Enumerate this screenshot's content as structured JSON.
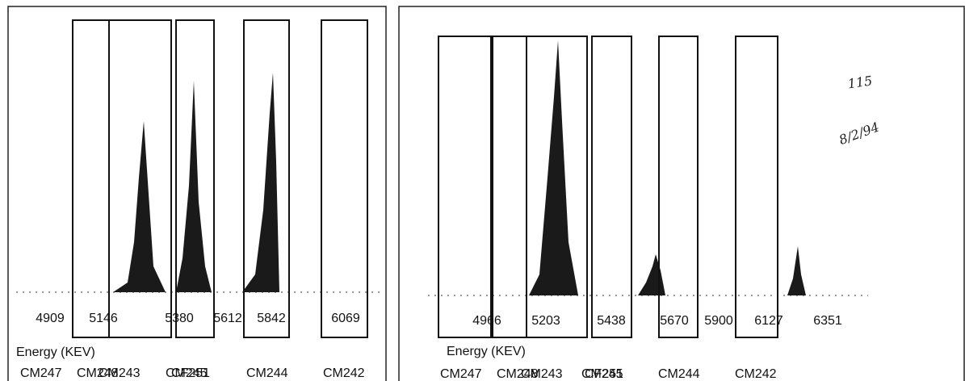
{
  "panels": [
    {
      "energy_labels": [
        "4909",
        "5146",
        "5380",
        "5612",
        "5842",
        "6069"
      ],
      "axis_label": "Energy (KEV)",
      "nuclides": [
        "CM247",
        "CM248",
        "CM243",
        "CM245",
        "CF251",
        "CM244",
        "CM242"
      ]
    },
    {
      "energy_labels": [
        "4966",
        "5203",
        "5438",
        "5670",
        "5900",
        "6127",
        "6351"
      ],
      "axis_label": "Energy (KEV)",
      "nuclides": [
        "CM247",
        "CM248",
        "CM243",
        "CM245",
        "CF251",
        "CM244",
        "CM242"
      ]
    }
  ],
  "annotations": [
    "115",
    "8/2/94"
  ]
}
